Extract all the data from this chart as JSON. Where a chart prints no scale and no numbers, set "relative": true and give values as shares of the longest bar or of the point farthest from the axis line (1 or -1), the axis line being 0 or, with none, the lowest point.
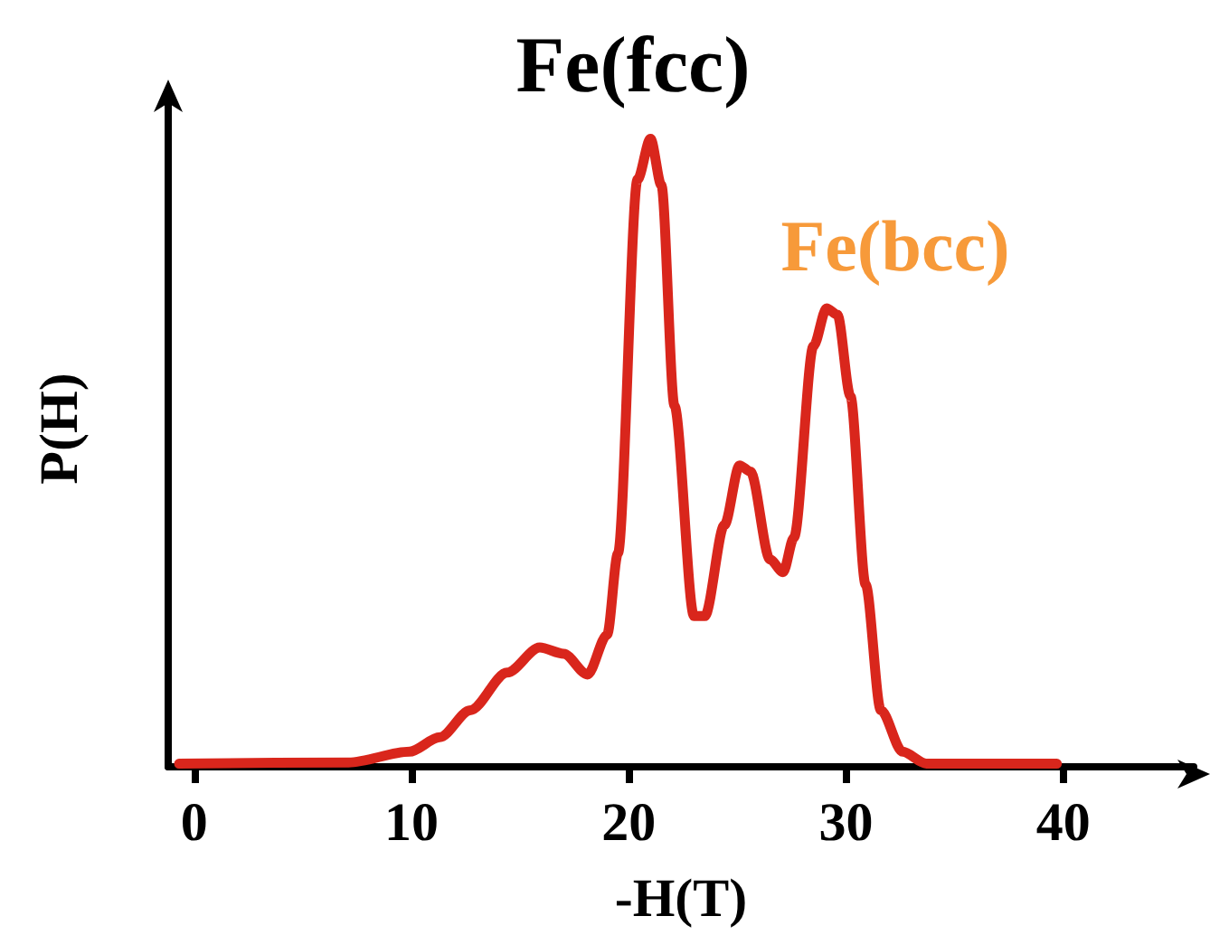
{
  "chart_data": {
    "type": "line",
    "relative": true,
    "xlabel": "-H(T)",
    "ylabel": "P(H)",
    "annotations": [
      "Fe(fcc)",
      "Fe(bcc)"
    ],
    "xlim": [
      -1.2,
      46
    ],
    "xticks": [
      0,
      10,
      20,
      30,
      40
    ],
    "marker": "none",
    "line_style": "solid",
    "series": [
      {
        "color": "#d9261c",
        "x": [
          -0.7,
          7.1,
          9.9,
          11.3,
          12.7,
          14.4,
          15.9,
          17.0,
          18.1,
          19.0,
          19.5,
          20.4,
          21.0,
          21.5,
          22.1,
          23.0,
          23.5,
          24.4,
          25.1,
          25.6,
          26.5,
          27.1,
          27.6,
          28.5,
          29.1,
          29.6,
          30.2,
          30.9,
          31.6,
          32.6,
          33.7,
          39.7
        ],
        "values": [
          0.005,
          0.007,
          0.024,
          0.047,
          0.09,
          0.15,
          0.19,
          0.18,
          0.147,
          0.21,
          0.34,
          0.935,
          1.0,
          0.926,
          0.575,
          0.24,
          0.24,
          0.385,
          0.48,
          0.47,
          0.33,
          0.31,
          0.365,
          0.67,
          0.73,
          0.72,
          0.59,
          0.29,
          0.09,
          0.024,
          0.005,
          0.005
        ]
      }
    ]
  }
}
